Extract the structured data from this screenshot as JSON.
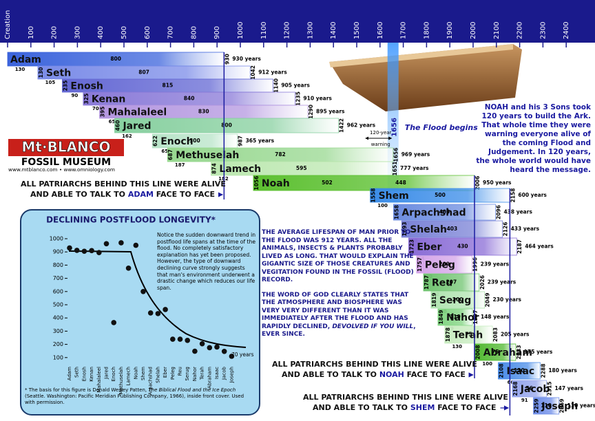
{
  "header": {
    "ticks": [
      {
        "value": 0,
        "label": "Creation"
      },
      100,
      200,
      300,
      400,
      500,
      600,
      700,
      800,
      900,
      1000,
      1100,
      1200,
      1300,
      1400,
      1500,
      1600,
      1700,
      1800,
      1900,
      2000,
      2100,
      2200,
      2300,
      2400
    ]
  },
  "patriarchs": [
    {
      "name": "Adam",
      "birth": null,
      "spans": [
        800
      ],
      "death": 930,
      "lifespan": "930 years",
      "begat": 130,
      "color": "#3c64dc"
    },
    {
      "name": "Seth",
      "birth": 130,
      "spans": [
        807
      ],
      "death": 1042,
      "lifespan": "912 years",
      "begat": 105,
      "color": "#7b8ce8"
    },
    {
      "name": "Enosh",
      "birth": 235,
      "spans": [
        815
      ],
      "death": 1140,
      "lifespan": "905 years",
      "begat": 90,
      "color": "#6468d4"
    },
    {
      "name": "Kenan",
      "birth": 325,
      "spans": [
        840
      ],
      "death": 1235,
      "lifespan": "910 years",
      "begat": 70,
      "color": "#8a7ad8"
    },
    {
      "name": "Mahalaleel",
      "birth": 395,
      "spans": [
        830
      ],
      "death": 1290,
      "lifespan": "895 years",
      "begat": 65,
      "color": "#b497e0"
    },
    {
      "name": "Jared",
      "birth": 460,
      "spans": [
        800
      ],
      "death": 1422,
      "lifespan": "962 years",
      "begat": 162,
      "color": "#88d0a0"
    },
    {
      "name": "Enoch",
      "birth": 622,
      "spans": [
        300
      ],
      "death": 987,
      "lifespan": "365 years",
      "begat": 65,
      "color": "#b8e4c8"
    },
    {
      "name": "Methuselah",
      "birth": 687,
      "spans": [
        782
      ],
      "death": 1656,
      "lifespan": "969 years",
      "begat": 187,
      "color": "#98d890"
    },
    {
      "name": "Lamech",
      "birth": 874,
      "spans": [
        595
      ],
      "death": 1651,
      "lifespan": "777 years",
      "begat": 182,
      "color": "#bce8b0"
    },
    {
      "name": "Noah",
      "birth": 1056,
      "spans": [
        502,
        448
      ],
      "death": 2006,
      "lifespan": "950 years",
      "begat": null,
      "color": "#5cc030"
    },
    {
      "name": "Shem",
      "birth": 1558,
      "spans": [
        500
      ],
      "death": 2158,
      "lifespan": "600 years",
      "begat": 100,
      "color": "#3a8ce8"
    },
    {
      "name": "Arpachshad",
      "birth": 1658,
      "spans": [
        403
      ],
      "death": 2096,
      "lifespan": "438 years",
      "begat": 35,
      "color": "#6c8ce0"
    },
    {
      "name": "Shelah",
      "birth": 1693,
      "spans": [
        403
      ],
      "death": 2126,
      "lifespan": "433 years",
      "begat": 30,
      "color": "#7a82d6"
    },
    {
      "name": "Eber",
      "birth": 1723,
      "spans": [
        430
      ],
      "death": 2187,
      "lifespan": "464 years",
      "begat": 34,
      "color": "#8a6cd6"
    },
    {
      "name": "Peleg",
      "birth": 1757,
      "spans": [
        209
      ],
      "death": 1996,
      "lifespan": "239 years",
      "begat": 30,
      "color": "#d4a4e8"
    },
    {
      "name": "Reu",
      "birth": 1787,
      "spans": [
        207
      ],
      "death": 2026,
      "lifespan": "239 years",
      "begat": 32,
      "color": "#70c470"
    },
    {
      "name": "Serug",
      "birth": 1819,
      "spans": [
        200
      ],
      "death": 2049,
      "lifespan": "230 years",
      "begat": 30,
      "color": "#b0e4b0"
    },
    {
      "name": "Nahor",
      "birth": 1849,
      "spans": [
        119
      ],
      "death": 1997,
      "lifespan": "148 years",
      "begat": 29,
      "color": "#80d480"
    },
    {
      "name": "Terah",
      "birth": 1878,
      "spans": [
        75
      ],
      "death": 2083,
      "lifespan": "205 years",
      "begat": 130,
      "color": "#c8ecc0"
    },
    {
      "name": "Abraham",
      "birth": 2008,
      "spans": [
        75
      ],
      "death": 2183,
      "lifespan": "175 years",
      "begat": 100,
      "color": "#50b830"
    },
    {
      "name": "Isaac",
      "birth": 2108,
      "spans": [
        120
      ],
      "death": 2288,
      "lifespan": "180 years",
      "begat": 60,
      "color": "#4a8ce8"
    },
    {
      "name": "Jacob",
      "birth": 2168,
      "spans": [
        56
      ],
      "death": 2315,
      "lifespan": "147 years",
      "begat": 91,
      "color": "#94a4ec"
    },
    {
      "name": "Joseph",
      "birth": 2259,
      "spans": [
        110
      ],
      "death": 2369,
      "lifespan": "110 years",
      "begat": null,
      "color": "#6c8ce8"
    }
  ],
  "flood": {
    "year": 1656,
    "label": "The Flood begins",
    "warning": [
      "120-year",
      "warning"
    ]
  },
  "noah_note": "NOAH and his 3 Sons took 120 years to build the Ark. That whole time they were warning everyone alive of the coming Flood and Judgement. In 120 years, the whole world would have heard the message.",
  "logo": {
    "title": "Mt·BLANCO",
    "subtitle": "FOSSIL MUSEUM",
    "url": "www.mtblanco.com • www.omniology.com"
  },
  "statements": [
    {
      "line1": "ALL PATRIARCHS BEHIND THIS LINE WERE ALIVE",
      "line2_before": "AND ABLE TO TALK TO ",
      "name": "ADAM",
      "line2_after": " FACE TO FACE"
    },
    {
      "line1": "ALL PATRIARCHS BEHIND THIS LINE WERE ALIVE",
      "line2_before": "AND ABLE TO TALK TO ",
      "name": "NOAH",
      "line2_after": " FACE TO FACE"
    },
    {
      "line1": "ALL PATRIARCHS BEHIND THIS LINE WERE ALIVE",
      "line2_before": "AND ABLE TO TALK TO ",
      "name": "SHEM",
      "line2_after": " FACE TO FACE"
    }
  ],
  "middle_text": {
    "p1": "THE AVERAGE LIFESPAN OF MAN PRIOR TO THE FLOOD WAS 912 YEARS. ALL THE ANIMALS, INSECTS & PLANTS PROBABLY LIVED AS LONG.  THAT WOULD EXPLAIN THE GIGANTIC SIZE OF THOSE CREATURES AND VEGITATION FOUND IN THE FOSSIL (FLOOD) RECORD.",
    "p2_before": "THE WORD OF GOD CLEARLY STATES THAT THE ATMOSPHERE AND BIOSPHERE WAS VERY VERY DIFFERENT THAN IT WAS IMMEDIATELY AFTER THE FLOOD AND HAS RAPIDLY DECLINED, ",
    "p2_italic": "DEVOLVED IF YOU WILL",
    "p2_after": ", EVER SINCE."
  },
  "inset": {
    "title": "DECLINING  POSTFLOOD LONGEVITY*",
    "categories": [
      "Adam",
      "Seth",
      "Enosh",
      "Kenan",
      "Mahalaleel",
      "Jared",
      "Enoch",
      "Methuselah",
      "Lamech",
      "Noah",
      "Shem",
      "Arpachshad",
      "Shelah",
      "Eber",
      "Peleg",
      "Reu",
      "Serug",
      "Nahor",
      "Terah",
      "Abraham",
      "Isaac",
      "Jacob",
      "Joseph"
    ],
    "values": [
      930,
      912,
      905,
      910,
      895,
      962,
      365,
      969,
      777,
      950,
      600,
      438,
      433,
      464,
      239,
      239,
      230,
      148,
      205,
      175,
      180,
      147,
      110
    ],
    "ylim": [
      0,
      1000
    ],
    "yticks": [
      100,
      200,
      300,
      400,
      500,
      600,
      700,
      800,
      900,
      1000
    ],
    "annotation": "70 years",
    "note": "Notice the sudden downward trend in postflood life spans at the time of the flood. No completely satisfactory explanation has yet been proposed. However, the type of downward declining curve strongly suggests that man's environment underwent a drastic change which reduces our life span.",
    "footnote_before": "* The basis for this figure is Donald Wesley Patten, ",
    "footnote_italic": "The Biblical Flood and the Ice Epoch",
    "footnote_after": " (Seattle. Washington: Pacific Meridian Publishing Company, 1966), inside front cover.  Used with permission."
  }
}
